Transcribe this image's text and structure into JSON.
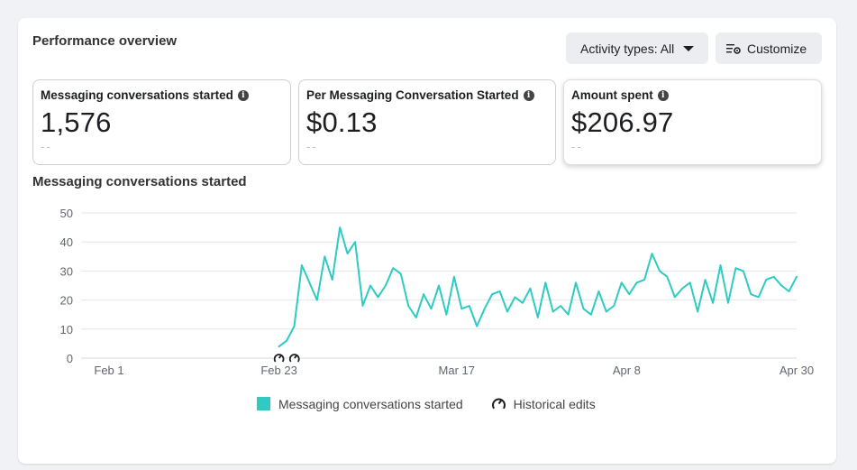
{
  "header": {
    "title": "Performance overview",
    "activity_button": "Activity types: All",
    "customize_button": "Customize"
  },
  "metrics": [
    {
      "label": "Messaging conversations started",
      "value": "1,576",
      "compare": "--"
    },
    {
      "label": "Per Messaging Conversation Started",
      "value": "$0.13",
      "compare": "--"
    },
    {
      "label": "Amount spent",
      "value": "$206.97",
      "compare": "--"
    }
  ],
  "chart_title": "Messaging conversations started",
  "legend": {
    "series": "Messaging conversations started",
    "edits": "Historical edits"
  },
  "colors": {
    "series": "#2dcbc2",
    "grid": "#e4e6eb",
    "axis_text": "#606770"
  },
  "chart_data": {
    "type": "line",
    "title": "",
    "xlabel": "",
    "ylabel": "",
    "ylim": [
      0,
      50
    ],
    "yticks": [
      0,
      10,
      20,
      30,
      40,
      50
    ],
    "xlim": [
      "2024-02-01",
      "2024-04-30"
    ],
    "xticks": [
      {
        "date": "2024-02-01",
        "label": "Feb 1"
      },
      {
        "date": "2024-02-23",
        "label": "Feb 23"
      },
      {
        "date": "2024-03-17",
        "label": "Mar 17"
      },
      {
        "date": "2024-04-08",
        "label": "Apr 8"
      },
      {
        "date": "2024-04-30",
        "label": "Apr 30"
      }
    ],
    "grid": true,
    "legend_position": "bottom",
    "historical_edits": [
      "2024-02-23",
      "2024-02-25"
    ],
    "series": [
      {
        "name": "Messaging conversations started",
        "x_start": "2024-02-23",
        "x_end": "2024-04-30",
        "values": [
          4,
          6,
          11,
          32,
          26,
          20,
          35,
          27,
          45,
          36,
          40,
          18,
          25,
          21,
          25,
          31,
          29,
          18,
          14,
          22,
          17,
          25,
          15,
          28,
          17,
          18,
          11,
          17,
          22,
          23,
          16,
          21,
          19,
          24,
          14,
          26,
          16,
          18,
          15,
          26,
          17,
          15,
          23,
          16,
          18,
          26,
          22,
          26,
          27,
          36,
          30,
          28,
          21,
          24,
          26,
          16,
          27,
          19,
          32,
          19,
          31,
          30,
          22,
          21,
          27,
          28,
          25,
          23,
          28
        ]
      }
    ]
  }
}
